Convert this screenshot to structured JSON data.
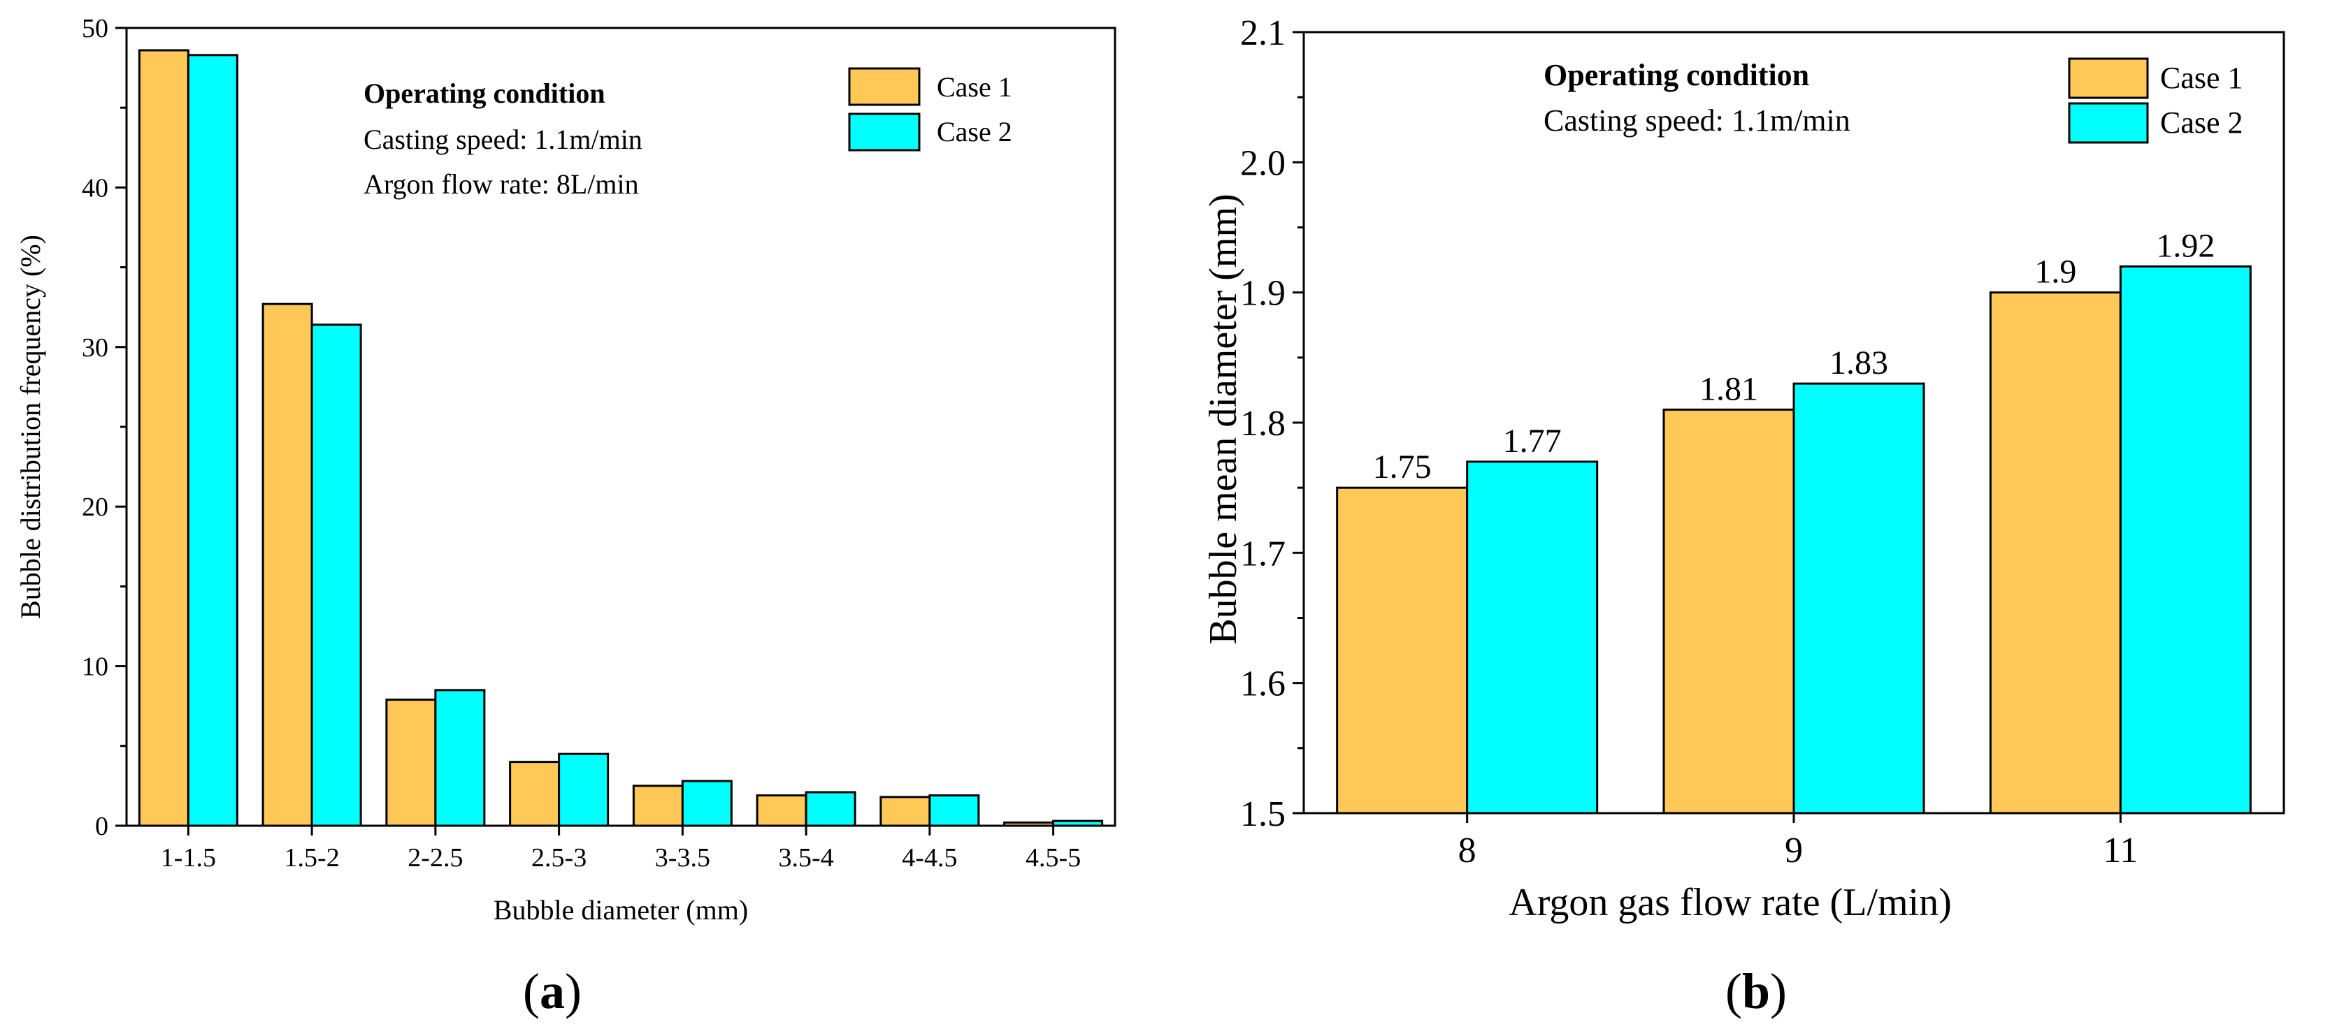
{
  "chart_data": [
    {
      "type": "bar",
      "panel": "a",
      "categories": [
        "1-1.5",
        "1.5-2",
        "2-2.5",
        "2.5-3",
        "3-3.5",
        "3.5-4",
        "4-4.5",
        "4.5-5"
      ],
      "series": [
        {
          "name": "Case 1",
          "color": "#FFC857",
          "values": [
            48.6,
            32.7,
            7.9,
            4.0,
            2.5,
            1.9,
            1.8,
            0.2
          ]
        },
        {
          "name": "Case 2",
          "color": "#00FFFF",
          "values": [
            48.3,
            31.4,
            8.5,
            4.5,
            2.8,
            2.1,
            1.9,
            0.3
          ]
        }
      ],
      "xlabel": "Bubble diameter (mm)",
      "ylabel": "Bubble distribution frequency (%)",
      "ylim": [
        0,
        50
      ],
      "yticks": [
        "0",
        "10",
        "20",
        "30",
        "40",
        "50"
      ],
      "annotation": {
        "heading": "Operating condition",
        "lines": [
          "Casting speed: 1.1m/min",
          "Argon flow rate: 8L/min"
        ]
      },
      "legend_position": "top-right",
      "panel_label": {
        "open": "(",
        "letter": "a",
        "close": ")"
      }
    },
    {
      "type": "bar",
      "panel": "b",
      "categories": [
        "8",
        "9",
        "11"
      ],
      "series": [
        {
          "name": "Case 1",
          "color": "#FFC857",
          "values": [
            1.75,
            1.81,
            1.9
          ]
        },
        {
          "name": "Case 2",
          "color": "#00FFFF",
          "values": [
            1.77,
            1.83,
            1.92
          ]
        }
      ],
      "data_labels": [
        [
          "1.75",
          "1.81",
          "1.9"
        ],
        [
          "1.77",
          "1.83",
          "1.92"
        ]
      ],
      "xlabel": "Argon gas flow rate (L/min)",
      "ylabel": "Bubble mean diameter (mm)",
      "ylim": [
        1.5,
        2.1
      ],
      "yticks": [
        "1.5",
        "1.6",
        "1.7",
        "1.8",
        "1.9",
        "2.0",
        "2.1"
      ],
      "annotation": {
        "heading": "Operating condition",
        "lines": [
          "Casting speed: 1.1m/min"
        ]
      },
      "legend_position": "top-right",
      "panel_label": {
        "open": "(",
        "letter": "b",
        "close": ")"
      }
    }
  ]
}
